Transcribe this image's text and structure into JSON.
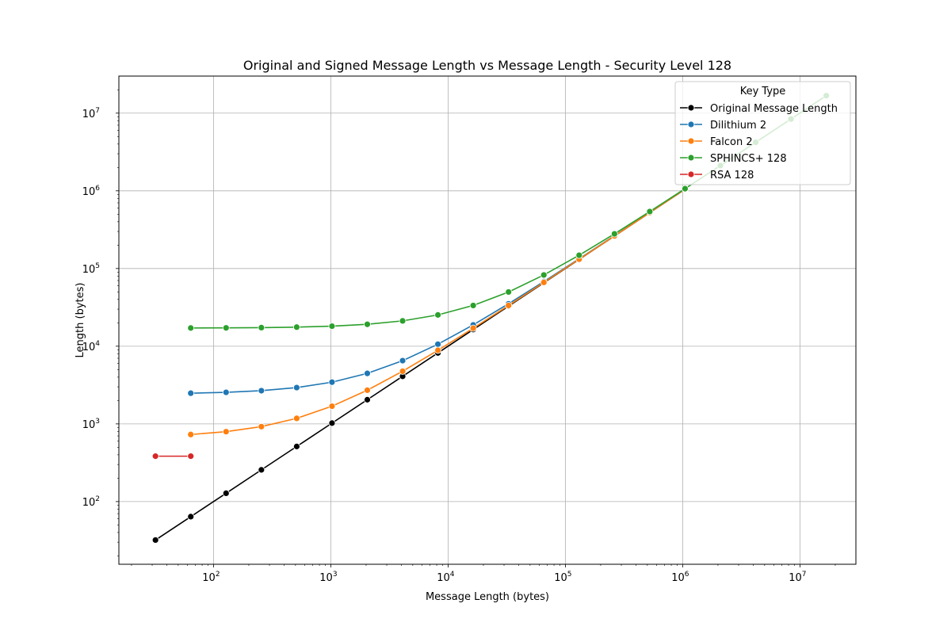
{
  "chart_data": {
    "type": "line",
    "title": "Original and Signed Message Length vs Message Length - Security Level 128",
    "xlabel": "Message Length (bytes)",
    "ylabel": "Length (bytes)",
    "xscale": "log",
    "yscale": "log",
    "xlim": [
      15.6,
      30000000
    ],
    "ylim": [
      15.6,
      30000000
    ],
    "grid": true,
    "legend": {
      "title": "Key Type",
      "placement": "top-right"
    },
    "x_ticks": [
      {
        "value": 100,
        "base": "10",
        "exp": "2"
      },
      {
        "value": 1000,
        "base": "10",
        "exp": "3"
      },
      {
        "value": 10000,
        "base": "10",
        "exp": "4"
      },
      {
        "value": 100000,
        "base": "10",
        "exp": "5"
      },
      {
        "value": 1000000,
        "base": "10",
        "exp": "6"
      },
      {
        "value": 10000000,
        "base": "10",
        "exp": "7"
      }
    ],
    "y_ticks": [
      {
        "value": 100,
        "base": "10",
        "exp": "2"
      },
      {
        "value": 1000,
        "base": "10",
        "exp": "3"
      },
      {
        "value": 10000,
        "base": "10",
        "exp": "4"
      },
      {
        "value": 100000,
        "base": "10",
        "exp": "5"
      },
      {
        "value": 1000000,
        "base": "10",
        "exp": "6"
      },
      {
        "value": 10000000,
        "base": "10",
        "exp": "7"
      }
    ],
    "series": [
      {
        "name": "Original Message Length",
        "color": "#000000",
        "x": [
          32,
          64,
          128,
          256,
          512,
          1024,
          2048,
          4096,
          8192,
          16384,
          32768,
          65536,
          131072,
          262144,
          524288,
          1048576
        ],
        "y": [
          32,
          64,
          128,
          256,
          512,
          1024,
          2048,
          4096,
          8192,
          16384,
          32768,
          65536,
          131072,
          262144,
          524288,
          1048576
        ]
      },
      {
        "name": "Dilithium 2",
        "color": "#1f77b4",
        "x": [
          64,
          128,
          256,
          512,
          1024,
          2048,
          4096,
          8192,
          16384,
          32768,
          65536,
          131072,
          262144,
          524288,
          1048576
        ],
        "y": [
          2484,
          2548,
          2676,
          2932,
          3444,
          4468,
          6516,
          10612,
          18804,
          35188,
          67956,
          133492,
          264564,
          526708,
          1051000
        ]
      },
      {
        "name": "Falcon 2",
        "color": "#ff7f0e",
        "x": [
          64,
          128,
          256,
          512,
          1024,
          2048,
          4096,
          8192,
          16384,
          32768,
          65536,
          131072,
          262144,
          524288,
          1048576
        ],
        "y": [
          730,
          794,
          922,
          1178,
          1690,
          2714,
          4762,
          8858,
          17050,
          33434,
          66202,
          131738,
          262810,
          524954,
          1049200
        ]
      },
      {
        "name": "SPHINCS+ 128",
        "color": "#2ca02c",
        "x": [
          64,
          128,
          256,
          512,
          1024,
          2048,
          4096,
          8192,
          16384,
          32768,
          65536,
          131072,
          262144,
          524288,
          1048576,
          2097152,
          4194304,
          8388608,
          16777216
        ],
        "y": [
          17152,
          17216,
          17344,
          17600,
          18112,
          19136,
          21184,
          25280,
          33472,
          49856,
          82624,
          148160,
          279232,
          541376,
          1065664,
          2114240,
          4211392,
          8405696,
          16794304
        ]
      },
      {
        "name": "RSA 128",
        "color": "#d62728",
        "x": [
          32,
          64
        ],
        "y": [
          384,
          384
        ]
      }
    ]
  }
}
